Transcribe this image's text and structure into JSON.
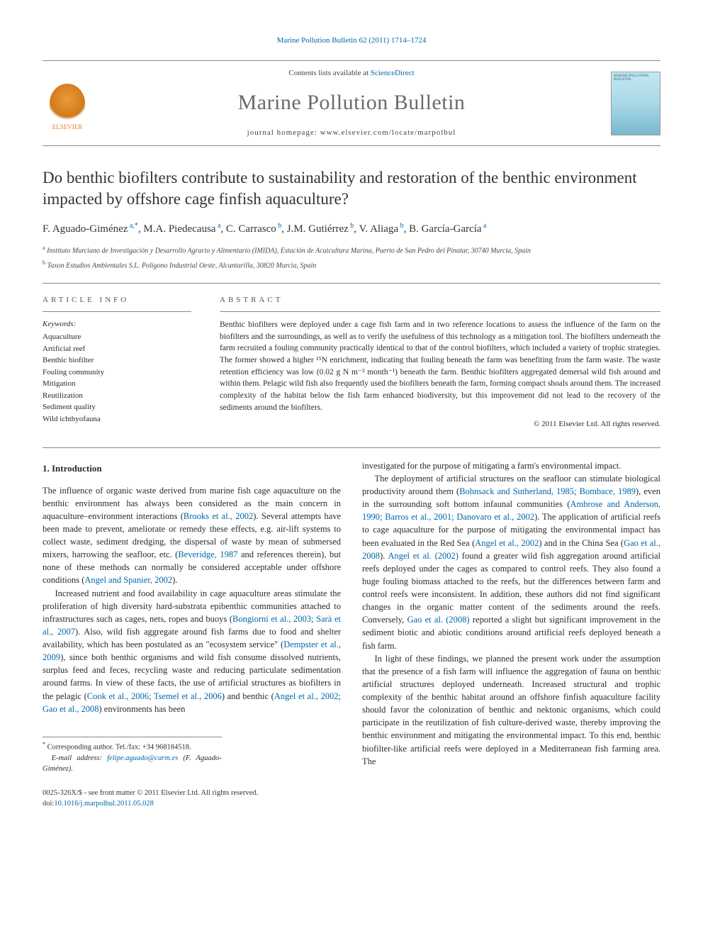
{
  "top_link": {
    "text": "Marine Pollution Bulletin 62 (2011) 1714–1724"
  },
  "masthead": {
    "elsevier_label": "ELSEVIER",
    "contents_prefix": "Contents lists available at ",
    "contents_link": "ScienceDirect",
    "journal_name": "Marine Pollution Bulletin",
    "homepage_prefix": "journal homepage: ",
    "homepage_url": "www.elsevier.com/locate/marpolbul",
    "cover_title": "MARINE POLLUTION BULLETIN"
  },
  "article": {
    "title": "Do benthic biofilters contribute to sustainability and restoration of the benthic environment impacted by offshore cage finfish aquaculture?",
    "authors_html": "F. Aguado-Giménez <sup>a,*</sup>, M.A. Piedecausa <sup>a</sup>, C. Carrasco <sup>b</sup>, J.M. Gutiérrez <sup>b</sup>, V. Aliaga <sup>b</sup>, B. García-García <sup>a</sup>",
    "affiliations": [
      {
        "sup": "a",
        "text": "Instituto Murciano de Investigación y Desarrollo Agrario y Alimentario (IMIDA), Estación de Acuicultura Marina, Puerto de San Pedro del Pinatar, 30740 Murcia, Spain"
      },
      {
        "sup": "b",
        "text": "Taxon Estudios Ambientales S.L. Polígono Industrial Oeste, Alcantarilla, 30820 Murcia, Spain"
      }
    ]
  },
  "info": {
    "label": "ARTICLE INFO",
    "keywords_label": "Keywords:",
    "keywords": [
      "Aquaculture",
      "Artificial reef",
      "Benthic biofilter",
      "Fouling community",
      "Mitigation",
      "Reutilization",
      "Sediment quality",
      "Wild ichthyofauna"
    ]
  },
  "abstract": {
    "label": "ABSTRACT",
    "text": "Benthic biofilters were deployed under a cage fish farm and in two reference locations to assess the influence of the farm on the biofilters and the surroundings, as well as to verify the usefulness of this technology as a mitigation tool. The biofilters underneath the farm recruited a fouling community practically identical to that of the control biofilters, which included a variety of trophic strategies. The former showed a higher ¹⁵N enrichment, indicating that fouling beneath the farm was benefiting from the farm waste. The waste retention efficiency was low (0.02 g N m⁻² month⁻¹) beneath the farm. Benthic biofilters aggregated demersal wild fish around and within them. Pelagic wild fish also frequently used the biofilters beneath the farm, forming compact shoals around them. The increased complexity of the habitat below the fish farm enhanced biodiversity, but this improvement did not lead to the recovery of the sediments around the biofilters.",
    "copyright": "© 2011 Elsevier Ltd. All rights reserved."
  },
  "body": {
    "heading": "1. Introduction",
    "col1": {
      "p1a": "The influence of organic waste derived from marine fish cage aquaculture on the benthic environment has always been considered as the main concern in aquaculture–environment interactions (",
      "p1_link1": "Brooks et al., 2002",
      "p1b": "). Several attempts have been made to prevent, ameliorate or remedy these effects, e.g. air-lift systems to collect waste, sediment dredging, the dispersal of waste by mean of submersed mixers, harrowing the seafloor, etc. (",
      "p1_link2": "Beveridge, 1987",
      "p1c": " and references therein), but none of these methods can normally be considered acceptable under offshore conditions (",
      "p1_link3": "Angel and Spanier, 2002",
      "p1d": ").",
      "p2a": "Increased nutrient and food availability in cage aquaculture areas stimulate the proliferation of high diversity hard-substrata epibenthic communities attached to infrastructures such as cages, nets, ropes and buoys (",
      "p2_link1": "Bongiorni et al., 2003; Sarà et al., 2007",
      "p2b": "). Also, wild fish aggregate around fish farms due to food and shelter availability, which has been postulated as an \"ecosystem service\" (",
      "p2_link2": "Dempster et al., 2009",
      "p2c": "), since both benthic organisms and wild fish consume dissolved nutrients, surplus feed and feces, recycling waste and reducing particulate sedimentation around farms. In view of these facts, the use of artificial structures as biofilters in the pelagic (",
      "p2_link3": "Cook et al., 2006; Tsemel et al., 2006",
      "p2d": ") and benthic (",
      "p2_link4": "Angel et al., 2002; Gao et al., 2008",
      "p2e": ") environments has been"
    },
    "col2": {
      "p1": "investigated for the purpose of mitigating a farm's environmental impact.",
      "p2a": "The deployment of artificial structures on the seafloor can stimulate biological productivity around them (",
      "p2_link1": "Bohnsack and Sutherland, 1985; Bombace, 1989",
      "p2b": "), even in the surrounding soft bottom infaunal communities (",
      "p2_link2": "Ambrose and Anderson, 1990; Barros et al., 2001; Danovaro et al., 2002",
      "p2c": "). The application of artificial reefs to cage aquaculture for the purpose of mitigating the environmental impact has been evaluated in the Red Sea (",
      "p2_link3": "Angel et al., 2002",
      "p2d": ") and in the China Sea (",
      "p2_link4": "Gao et al., 2008",
      "p2e": "). ",
      "p2_link5": "Angel et al. (2002)",
      "p2f": " found a greater wild fish aggregation around artificial reefs deployed under the cages as compared to control reefs. They also found a huge fouling biomass attached to the reefs, but the differences between farm and control reefs were inconsistent. In addition, these authors did not find significant changes in the organic matter content of the sediments around the reefs. Conversely, ",
      "p2_link6": "Gao et al. (2008)",
      "p2g": " reported a slight but significant improvement in the sediment biotic and abiotic conditions around artificial reefs deployed beneath a fish farm.",
      "p3": "In light of these findings, we planned the present work under the assumption that the presence of a fish farm will influence the aggregation of fauna on benthic artificial structures deployed underneath. Increased structural and trophic complexity of the benthic habitat around an offshore finfish aquaculture facility should favor the colonization of benthic and nektonic organisms, which could participate in the reutilization of fish culture-derived waste, thereby improving the benthic environment and mitigating the environmental impact. To this end, benthic biofilter-like artificial reefs were deployed in a Mediterranean fish farming area. The"
    }
  },
  "corr": {
    "line1_prefix": "* Corresponding author. Tel./fax: +34 968184518.",
    "email_label": "E-mail address: ",
    "email": "felipe.aguado@carm.es",
    "email_suffix": " (F. Aguado-Giménez)."
  },
  "footer": {
    "issn_line": "0025-326X/$ - see front matter © 2011 Elsevier Ltd. All rights reserved.",
    "doi_prefix": "doi:",
    "doi": "10.1016/j.marpolbul.2011.05.028"
  },
  "colors": {
    "link": "#0066aa",
    "text": "#2a2a2a",
    "rule": "#888888",
    "elsevier": "#e67e22"
  }
}
